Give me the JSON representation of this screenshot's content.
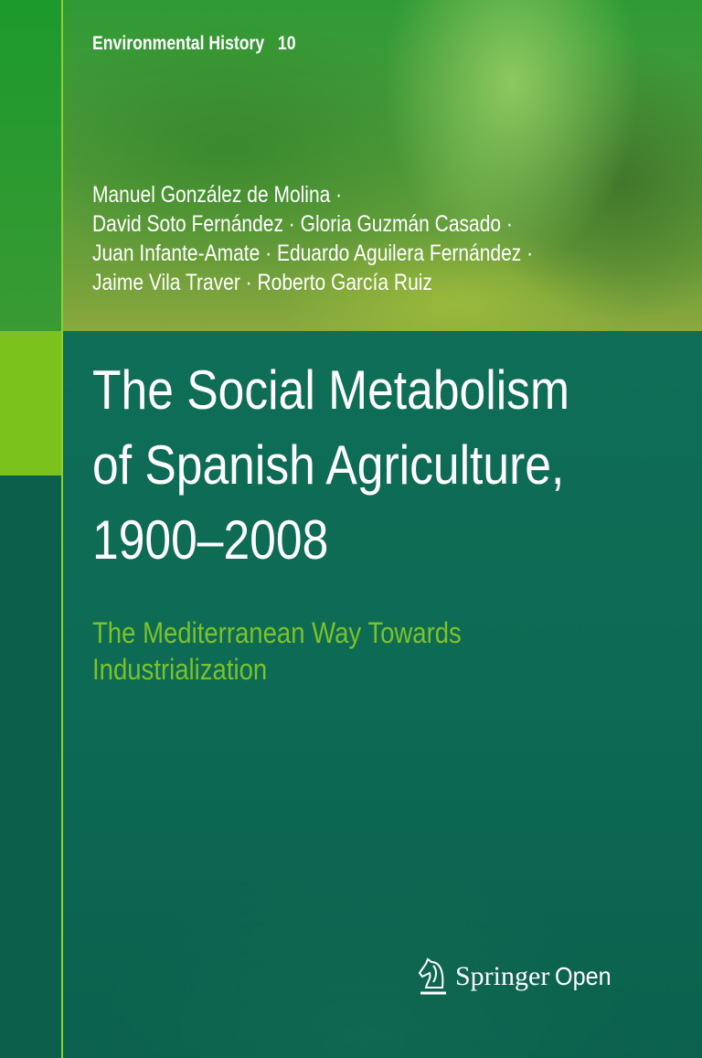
{
  "series": {
    "name": "Environmental History",
    "number": "10"
  },
  "authors": [
    "Manuel González de Molina ·",
    "David Soto Fernández · Gloria Guzmán Casado ·",
    "Juan Infante-Amate · Eduardo Aguilera Fernández ·",
    "Jaime Vila Traver · Roberto García Ruiz"
  ],
  "title_lines": [
    "The Social Metabolism",
    "of Spanish Agriculture,",
    "1900–2008"
  ],
  "subtitle_lines": [
    "The Mediterranean Way Towards",
    "Industrialization"
  ],
  "publisher": {
    "brand": "Springer",
    "imprint": "Open",
    "icon": "knight-chess-icon"
  },
  "colors": {
    "teal": "#0d6a54",
    "lime": "#7bc21c",
    "subtitle": "#7cc22a"
  }
}
